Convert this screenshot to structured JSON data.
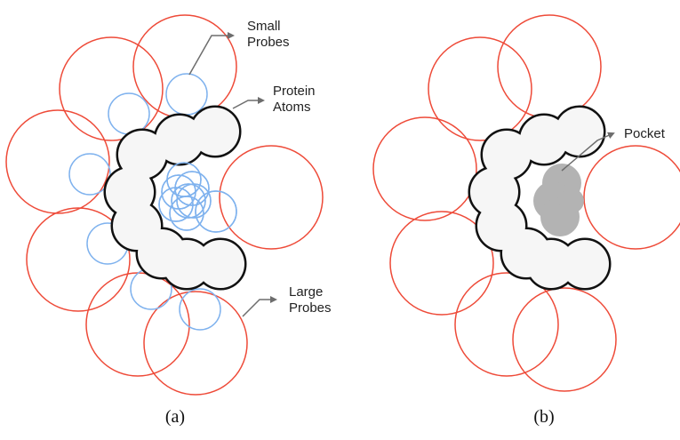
{
  "panel_a": {
    "labels": {
      "small_probes": [
        "Small",
        "Probes"
      ],
      "protein_atoms": [
        "Protein",
        "Atoms"
      ],
      "large_probes": [
        "Large",
        "Probes"
      ]
    },
    "caption": "(a)"
  },
  "panel_b": {
    "labels": {
      "pocket": "Pocket"
    },
    "caption": "(b)"
  },
  "colors": {
    "large_probe": "#ee4a38",
    "small_probe": "#7fb2ee",
    "protein_fill": "#f6f6f6",
    "protein_outline": "#111111",
    "pocket_fill": "#b3b3b3",
    "leader_line": "#6d6d6d"
  }
}
